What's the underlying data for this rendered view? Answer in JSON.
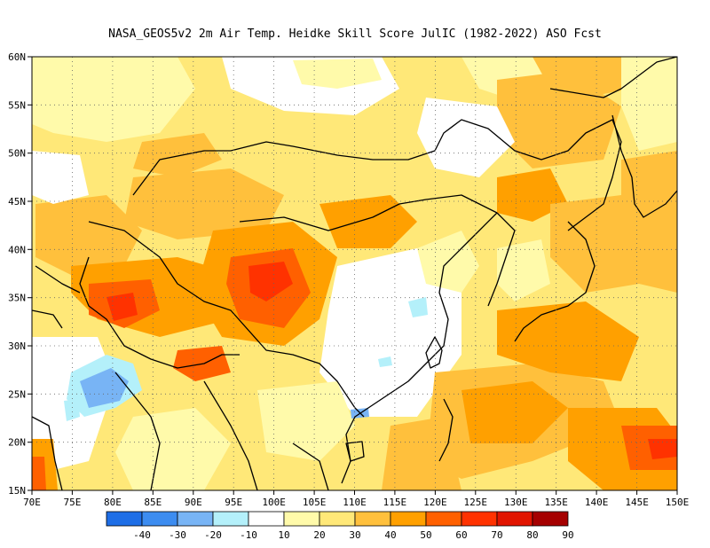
{
  "title": "NASA_GEOS5v2  2m Air Temp. Heidke Skill Score JulIC (1982-2022) ASO Fcst",
  "map": {
    "lon_labels": [
      "70E",
      "75E",
      "80E",
      "85E",
      "90E",
      "95E",
      "100E",
      "105E",
      "110E",
      "115E",
      "120E",
      "125E",
      "130E",
      "135E",
      "140E",
      "145E",
      "150E"
    ],
    "lat_labels": [
      "60N",
      "55N",
      "50N",
      "45N",
      "40N",
      "35N",
      "30N",
      "25N",
      "20N",
      "15N"
    ],
    "lon_range": [
      70,
      150
    ],
    "lat_range": [
      15,
      60
    ],
    "grid": "dotted"
  },
  "colorbar": {
    "labels": [
      "-40",
      "-30",
      "-20",
      "-10",
      "10",
      "20",
      "30",
      "40",
      "50",
      "60",
      "70",
      "80",
      "90"
    ],
    "colors": [
      "#1e6ee6",
      "#3c8cf0",
      "#78b4f5",
      "#b4f0fa",
      "#ffffff",
      "#fffaaa",
      "#ffe878",
      "#ffc03c",
      "#ffa000",
      "#ff6000",
      "#ff3200",
      "#e11400",
      "#a50000"
    ]
  }
}
